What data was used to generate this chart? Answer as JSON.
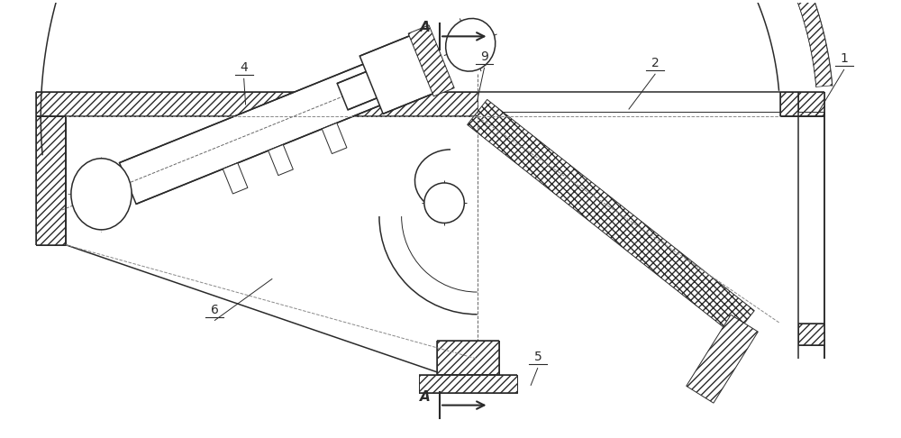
{
  "fig_width": 10.0,
  "fig_height": 4.86,
  "dpi": 100,
  "bg_color": "#ffffff",
  "lc": "#2a2a2a",
  "lw_thin": 0.7,
  "lw_med": 1.1,
  "lw_thick": 1.6
}
